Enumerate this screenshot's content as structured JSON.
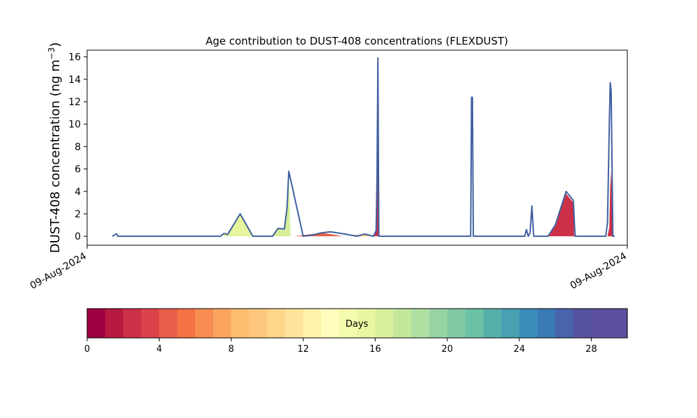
{
  "chart_data": {
    "type": "area",
    "title": "Age contribution to DUST-408 concentrations (FLEXDUST)",
    "ylabel": "DUST-408 concentration (ng m",
    "ylabel_sup": "−3",
    "ylabel_close": ")",
    "ylim": [
      -0.8,
      16.6
    ],
    "yticks": [
      0,
      2,
      4,
      6,
      8,
      10,
      12,
      14,
      16
    ],
    "xlim": [
      0,
      30
    ],
    "xticks": [
      {
        "pos": 0,
        "label": "09-Aug-2024"
      },
      {
        "pos": 30,
        "label": "09-Aug-2024"
      }
    ],
    "total_line_color": "#4060a0",
    "total": {
      "x": [
        1.4,
        1.6,
        1.65,
        1.7,
        7.4,
        7.6,
        7.8,
        8.5,
        9.2,
        9.8,
        10.0,
        10.3,
        10.6,
        10.95,
        11.1,
        11.2,
        12.0,
        12.5,
        13.0,
        13.5,
        14.3,
        15.0,
        15.4,
        15.9,
        16.05,
        16.1,
        16.15,
        16.2,
        16.3,
        16.4,
        21.3,
        21.35,
        21.4,
        21.45,
        21.5,
        24.3,
        24.4,
        24.5,
        24.6,
        24.7,
        24.8,
        24.9,
        25.0,
        25.1,
        25.6,
        26.0,
        26.6,
        27.0,
        27.1,
        28.8,
        28.9,
        29.0,
        29.05,
        29.1,
        29.15,
        29.2,
        29.3
      ],
      "y": [
        0,
        0.2,
        0.2,
        0,
        0,
        0.25,
        0.15,
        2.0,
        0,
        0,
        0,
        0,
        0.7,
        0.65,
        2.5,
        5.8,
        0,
        0.1,
        0.3,
        0.4,
        0.2,
        0,
        0.2,
        0,
        0.5,
        5.0,
        15.9,
        0,
        0,
        0,
        0,
        12.4,
        12.4,
        0,
        0,
        0,
        0.6,
        0,
        0.3,
        2.7,
        0,
        0,
        0,
        0,
        0,
        1.0,
        4.0,
        3.2,
        0,
        0,
        1.2,
        10.0,
        13.7,
        13.0,
        7.0,
        0,
        0
      ],
      "y_note": "approximate readings of the blue total line"
    },
    "age_bands": [
      {
        "range": "16-17 days",
        "color": "#e4f59c",
        "x": [
          7.6,
          7.8,
          8.5,
          9.2
        ],
        "y": [
          0.2,
          0.1,
          2.0,
          0
        ]
      },
      {
        "range": "17-18 days",
        "color": "#d4ee9a",
        "x": [
          10.3,
          10.6,
          10.95,
          11.1,
          11.2,
          11.3
        ],
        "y": [
          0,
          0.7,
          0.65,
          2.5,
          5.6,
          0
        ]
      },
      {
        "range": "10-11 days",
        "color": "#fdc776",
        "x": [
          14.6,
          15.0,
          15.4,
          15.8
        ],
        "y": [
          0,
          0.15,
          0.15,
          0
        ]
      },
      {
        "range": "3-4 days",
        "color": "#e95c47",
        "x": [
          11.5,
          12.5,
          13.0,
          13.5,
          14.2
        ],
        "y": [
          0,
          0.2,
          0.3,
          0.2,
          0
        ]
      },
      {
        "range": "1-2 days",
        "color": "#cc2f47",
        "x": [
          15.9,
          16.05,
          16.1,
          16.15,
          16.2
        ],
        "y": [
          0,
          0.5,
          4.0,
          7.0,
          0
        ]
      },
      {
        "range": "1-2 days",
        "color": "#cc2f47",
        "x": [
          25.6,
          26.0,
          26.6,
          27.0,
          27.05
        ],
        "y": [
          0,
          0.9,
          3.8,
          3.0,
          0
        ]
      },
      {
        "range": "1-2 days",
        "color": "#cc2f47",
        "x": [
          28.9,
          29.0,
          29.05,
          29.1,
          29.2
        ],
        "y": [
          0,
          0.8,
          4.5,
          5.8,
          0
        ]
      }
    ],
    "colorbar": {
      "label": "Days",
      "ticks": [
        0,
        4,
        8,
        12,
        16,
        20,
        24,
        28
      ],
      "min": 0,
      "max": 30,
      "colors": [
        "#9e0142",
        "#b5193f",
        "#cc2f47",
        "#dc4249",
        "#e95c47",
        "#f47245",
        "#f88c51",
        "#fba460",
        "#fdbd6f",
        "#fec77d",
        "#fed68a",
        "#fee49a",
        "#fff1a8",
        "#fffebe",
        "#f4faae",
        "#e9f6a1",
        "#d9ef9b",
        "#c5e79c",
        "#b0dfa2",
        "#97d4a4",
        "#81caa5",
        "#6cc2a6",
        "#57b0ab",
        "#47a1b0",
        "#3a8db8",
        "#3a7bb6",
        "#4864ac",
        "#5852a2",
        "#5e4fa2",
        "#5e4fa2"
      ]
    }
  }
}
